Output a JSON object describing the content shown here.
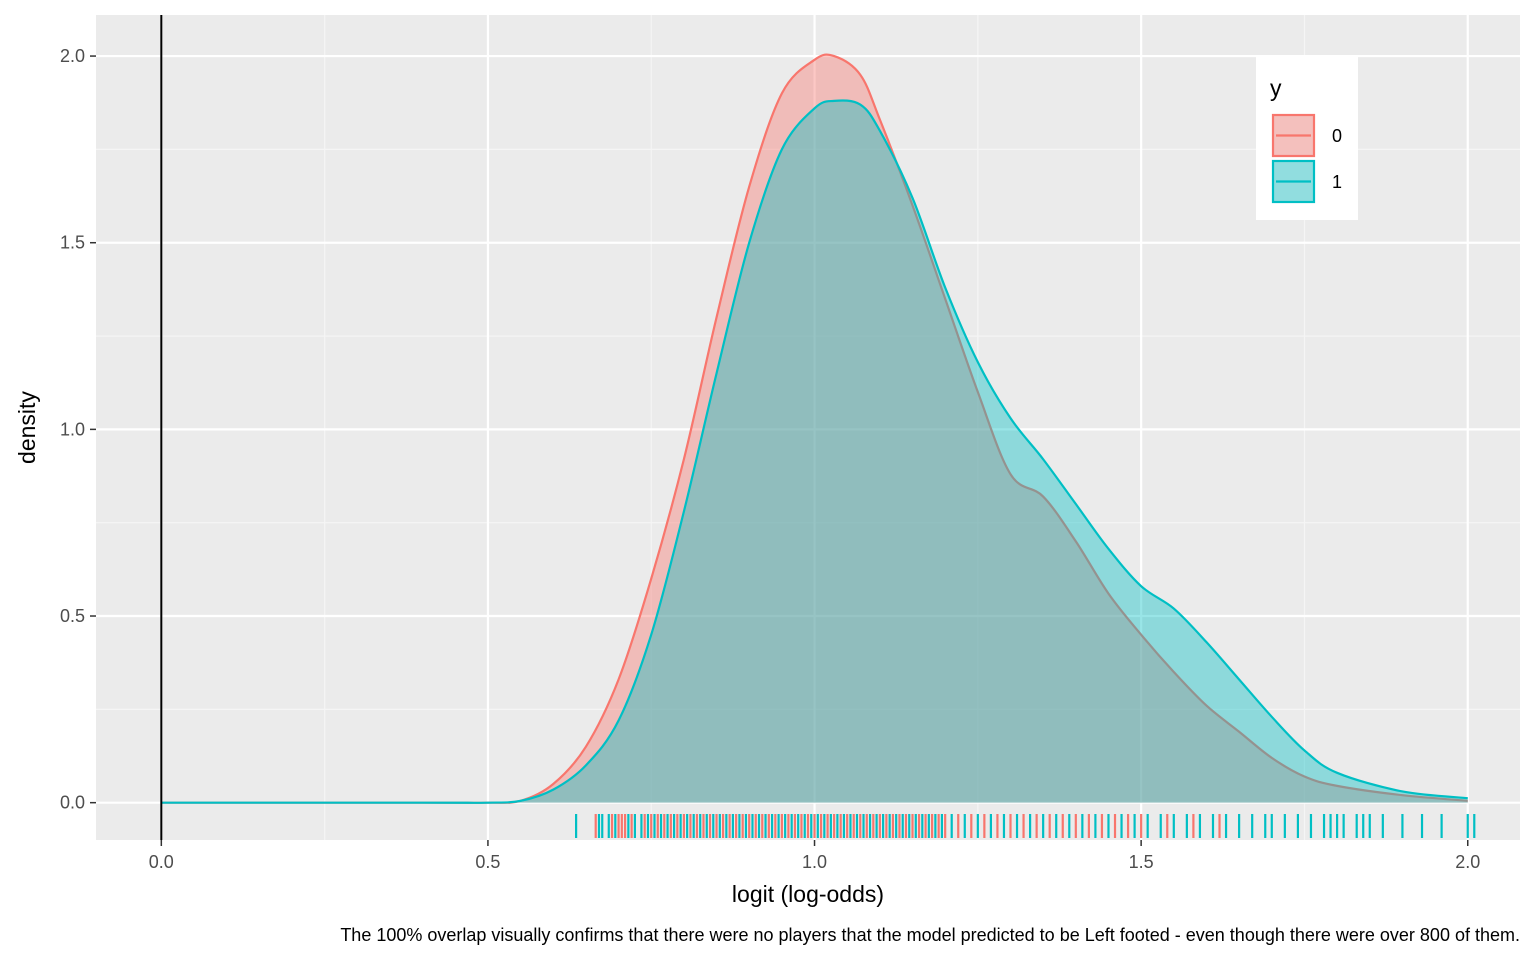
{
  "chart_data": {
    "type": "area",
    "title": "",
    "xlabel": "logit (log-odds)",
    "ylabel": "density",
    "caption": "The 100% overlap  visually confirms that there were no players that the model predicted to be Left footed - even though there were over 800 of them.",
    "xlim": [
      -0.1,
      2.08
    ],
    "ylim": [
      -0.1,
      2.11
    ],
    "x_ticks": [
      {
        "value": 0.0,
        "label": "0.0"
      },
      {
        "value": 0.5,
        "label": "0.5"
      },
      {
        "value": 1.0,
        "label": "1.0"
      },
      {
        "value": 1.5,
        "label": "1.5"
      },
      {
        "value": 2.0,
        "label": "2.0"
      }
    ],
    "y_ticks": [
      {
        "value": 0.0,
        "label": "0.0"
      },
      {
        "value": 0.5,
        "label": "0.5"
      },
      {
        "value": 1.0,
        "label": "1.0"
      },
      {
        "value": 1.5,
        "label": "1.5"
      },
      {
        "value": 2.0,
        "label": "2.0"
      }
    ],
    "vline_x": 0,
    "grid": true,
    "legend": {
      "title": "y",
      "position": "top-right"
    },
    "series": [
      {
        "name": "0",
        "color": "#F8766D",
        "x": [
          0,
          0.4,
          0.5,
          0.55,
          0.6,
          0.65,
          0.7,
          0.75,
          0.8,
          0.85,
          0.9,
          0.95,
          1.0,
          1.03,
          1.07,
          1.1,
          1.15,
          1.2,
          1.25,
          1.3,
          1.35,
          1.4,
          1.45,
          1.5,
          1.55,
          1.6,
          1.65,
          1.7,
          1.75,
          1.8,
          1.9,
          2.0
        ],
        "y": [
          0,
          0,
          0,
          0.005,
          0.05,
          0.15,
          0.33,
          0.6,
          0.92,
          1.3,
          1.65,
          1.9,
          1.99,
          2.0,
          1.95,
          1.83,
          1.6,
          1.35,
          1.1,
          0.88,
          0.82,
          0.7,
          0.56,
          0.45,
          0.35,
          0.26,
          0.19,
          0.12,
          0.07,
          0.045,
          0.02,
          0.005
        ]
      },
      {
        "name": "1",
        "color": "#00BFC4",
        "x": [
          0,
          0.4,
          0.5,
          0.55,
          0.6,
          0.65,
          0.7,
          0.75,
          0.8,
          0.85,
          0.9,
          0.95,
          1.0,
          1.03,
          1.07,
          1.1,
          1.15,
          1.2,
          1.25,
          1.3,
          1.35,
          1.4,
          1.45,
          1.5,
          1.55,
          1.6,
          1.65,
          1.7,
          1.75,
          1.8,
          1.9,
          2.0
        ],
        "y": [
          0,
          0,
          0,
          0.005,
          0.035,
          0.1,
          0.22,
          0.45,
          0.78,
          1.15,
          1.5,
          1.75,
          1.86,
          1.88,
          1.87,
          1.8,
          1.62,
          1.38,
          1.18,
          1.03,
          0.92,
          0.8,
          0.68,
          0.58,
          0.52,
          0.43,
          0.33,
          0.23,
          0.14,
          0.08,
          0.03,
          0.012
        ]
      }
    ],
    "rug": [
      {
        "series": "0",
        "x": [
          0.665,
          0.69,
          0.7,
          0.705,
          0.71,
          0.72,
          0.74,
          0.75,
          0.76,
          0.77,
          0.78,
          0.79,
          0.8,
          0.81,
          0.82,
          0.83,
          0.84,
          0.85,
          0.86,
          0.87,
          0.88,
          0.89,
          0.9,
          0.91,
          0.92,
          0.93,
          0.94,
          0.95,
          0.96,
          0.97,
          0.98,
          0.99,
          1.0,
          1.01,
          1.02,
          1.03,
          1.04,
          1.05,
          1.06,
          1.07,
          1.08,
          1.09,
          1.1,
          1.11,
          1.12,
          1.13,
          1.14,
          1.15,
          1.16,
          1.17,
          1.18,
          1.19,
          1.2,
          1.22,
          1.24,
          1.26,
          1.28,
          1.3,
          1.32,
          1.34,
          1.36,
          1.38,
          1.4,
          1.42,
          1.44,
          1.46,
          1.48,
          1.5,
          1.54,
          1.58,
          1.62
        ]
      },
      {
        "series": "1",
        "x": [
          0.635,
          0.67,
          0.675,
          0.685,
          0.695,
          0.715,
          0.725,
          0.735,
          0.745,
          0.755,
          0.765,
          0.775,
          0.785,
          0.795,
          0.805,
          0.815,
          0.825,
          0.835,
          0.845,
          0.855,
          0.865,
          0.875,
          0.885,
          0.895,
          0.905,
          0.915,
          0.925,
          0.935,
          0.945,
          0.955,
          0.965,
          0.975,
          0.985,
          0.995,
          1.005,
          1.015,
          1.025,
          1.035,
          1.045,
          1.055,
          1.065,
          1.075,
          1.085,
          1.095,
          1.105,
          1.115,
          1.125,
          1.135,
          1.145,
          1.155,
          1.165,
          1.175,
          1.185,
          1.195,
          1.21,
          1.23,
          1.25,
          1.27,
          1.29,
          1.31,
          1.33,
          1.35,
          1.37,
          1.39,
          1.41,
          1.43,
          1.45,
          1.47,
          1.49,
          1.51,
          1.53,
          1.55,
          1.57,
          1.59,
          1.61,
          1.63,
          1.65,
          1.67,
          1.69,
          1.7,
          1.72,
          1.74,
          1.76,
          1.78,
          1.79,
          1.8,
          1.81,
          1.83,
          1.84,
          1.85,
          1.87,
          1.9,
          1.93,
          1.96,
          2.0,
          2.01
        ]
      }
    ]
  }
}
